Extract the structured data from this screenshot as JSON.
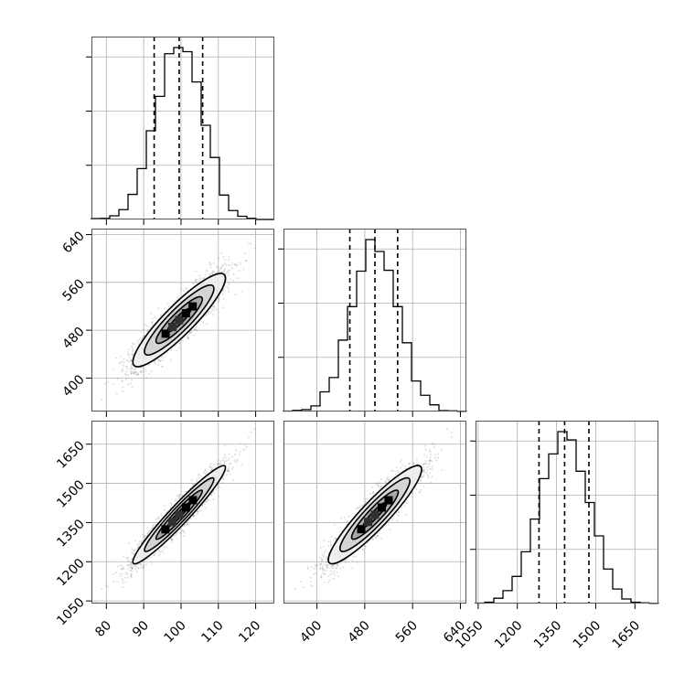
{
  "chart_data": {
    "type": "corner",
    "params": [
      {
        "ticks": [
          80,
          90,
          100,
          110,
          120
        ],
        "tick_labels": [
          "80",
          "90",
          "100",
          "110",
          "120"
        ],
        "range": [
          76,
          125
        ],
        "mean": 99.5,
        "sd": 6.2,
        "quantiles": [
          92.8,
          99.5,
          105.8
        ],
        "hist_max": 0.25
      },
      {
        "ticks": [
          400,
          480,
          560,
          640
        ],
        "tick_labels": [
          "400",
          "480",
          "560",
          "640"
        ],
        "range": [
          344,
          650
        ],
        "mean": 497,
        "sd": 39,
        "quantiles": [
          455,
          497,
          535
        ],
        "hist_max": 0.25
      },
      {
        "ticks": [
          1050,
          1200,
          1350,
          1500,
          1650
        ],
        "tick_labels": [
          "1050",
          "1200",
          "1350",
          "1500",
          "1650"
        ],
        "range": [
          1040,
          1740
        ],
        "mean": 1380,
        "sd": 94,
        "quantiles": [
          1283,
          1381,
          1474
        ],
        "hist_max": 0.25
      }
    ],
    "correlations": {
      "0_1": 0.9,
      "0_2": 0.96,
      "1_2": 0.92
    },
    "histogram_bins": 20,
    "grid": true,
    "quantile_lines": "dashed",
    "samples": 5000,
    "style": {
      "hist_color": "#000000",
      "point_color": "#808080",
      "contour_color": "#000000"
    }
  }
}
